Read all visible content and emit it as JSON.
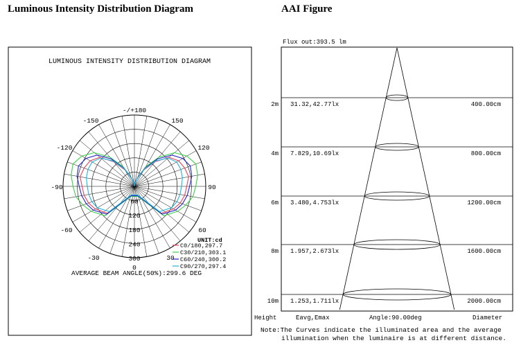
{
  "headers": {
    "left": "Luminous Intensity Distribution Diagram",
    "right": "AAI Figure"
  },
  "chart_data": [
    {
      "type": "polar",
      "title": "LUMINOUS INTENSITY DISTRIBUTION DIAGRAM",
      "angle_labels": [
        "-/+180",
        "150",
        "120",
        "90",
        "60",
        "-150",
        "-120",
        "-90",
        "-60",
        "-30",
        "30",
        "0"
      ],
      "radial_labels": [
        "60",
        "120",
        "180",
        "240",
        "300"
      ],
      "rlim": [
        0,
        300
      ],
      "unit": "UNIT:cd",
      "legend_placement": "bottom-right",
      "series": [
        {
          "name": "C0/180,297.7",
          "color": "#e8435a",
          "angles": [
            -160,
            -135,
            -120,
            -110,
            -100,
            -90,
            -80,
            -70,
            -60,
            -50,
            -40,
            -30,
            -20,
            -10,
            -5,
            0,
            5,
            10,
            20,
            30,
            40,
            50,
            60,
            70,
            80,
            90,
            100,
            110,
            120,
            135,
            160
          ],
          "values": [
            40,
            160,
            190,
            205,
            215,
            220,
            232,
            225,
            215,
            190,
            135,
            80,
            35,
            12,
            5,
            0,
            5,
            12,
            35,
            80,
            135,
            190,
            215,
            225,
            232,
            220,
            215,
            205,
            190,
            160,
            40
          ]
        },
        {
          "name": "C30/210,303.1",
          "color": "#3ad04a",
          "angles": [
            -160,
            -135,
            -120,
            -110,
            -100,
            -90,
            -80,
            -70,
            -60,
            -50,
            -40,
            -30,
            -20,
            -10,
            -5,
            0,
            5,
            10,
            20,
            30,
            40,
            50,
            60,
            70,
            80,
            90,
            100,
            110,
            120,
            135,
            160
          ],
          "values": [
            45,
            175,
            210,
            230,
            250,
            258,
            270,
            275,
            255,
            220,
            160,
            95,
            40,
            14,
            6,
            0,
            6,
            14,
            40,
            95,
            160,
            220,
            255,
            275,
            270,
            258,
            250,
            230,
            210,
            175,
            45
          ]
        },
        {
          "name": "C60/240,300.2",
          "color": "#2323c8",
          "angles": [
            -160,
            -135,
            -120,
            -110,
            -100,
            -90,
            -80,
            -70,
            -60,
            -50,
            -40,
            -30,
            -20,
            -10,
            -5,
            0,
            5,
            10,
            20,
            30,
            40,
            50,
            60,
            70,
            80,
            90,
            100,
            110,
            120,
            135,
            160
          ],
          "values": [
            42,
            165,
            200,
            215,
            225,
            232,
            245,
            250,
            235,
            205,
            150,
            88,
            38,
            13,
            5,
            0,
            5,
            13,
            38,
            88,
            150,
            205,
            235,
            250,
            245,
            232,
            225,
            215,
            200,
            165,
            42
          ]
        },
        {
          "name": "C90/270,297.4",
          "color": "#20b4e0",
          "angles": [
            -160,
            -135,
            -120,
            -110,
            -100,
            -90,
            -80,
            -70,
            -60,
            -50,
            -40,
            -30,
            -20,
            -10,
            -5,
            0,
            5,
            10,
            20,
            30,
            40,
            50,
            60,
            70,
            80,
            90,
            100,
            110,
            120,
            135,
            160
          ],
          "values": [
            38,
            150,
            180,
            190,
            195,
            198,
            205,
            208,
            205,
            185,
            140,
            85,
            35,
            12,
            5,
            0,
            5,
            12,
            35,
            85,
            140,
            185,
            205,
            208,
            205,
            198,
            195,
            190,
            180,
            150,
            38
          ]
        }
      ],
      "footer": "AVERAGE BEAM ANGLE(50%):299.6 DEG"
    },
    {
      "type": "table",
      "flux": "Flux out:393.5 lm",
      "rows": [
        {
          "height": "2m",
          "values": "31.32,42.77lx",
          "diameter": "400.00cm"
        },
        {
          "height": "4m",
          "values": "7.829,10.69lx",
          "diameter": "800.00cm"
        },
        {
          "height": "6m",
          "values": "3.480,4.753lx",
          "diameter": "1200.00cm"
        },
        {
          "height": "8m",
          "values": "1.957,2.673lx",
          "diameter": "1600.00cm"
        },
        {
          "height": "10m",
          "values": "1.253,1.711lx",
          "diameter": "2000.00cm"
        }
      ],
      "footer": {
        "height": "Height",
        "values": "Eavg,Emax",
        "angle": "Angle:90.00deg",
        "diameter": "Diameter"
      },
      "note": [
        "Note:The Curves indicate the illuminated area and the average",
        "illumination when the luminaire is at different distance."
      ]
    }
  ]
}
